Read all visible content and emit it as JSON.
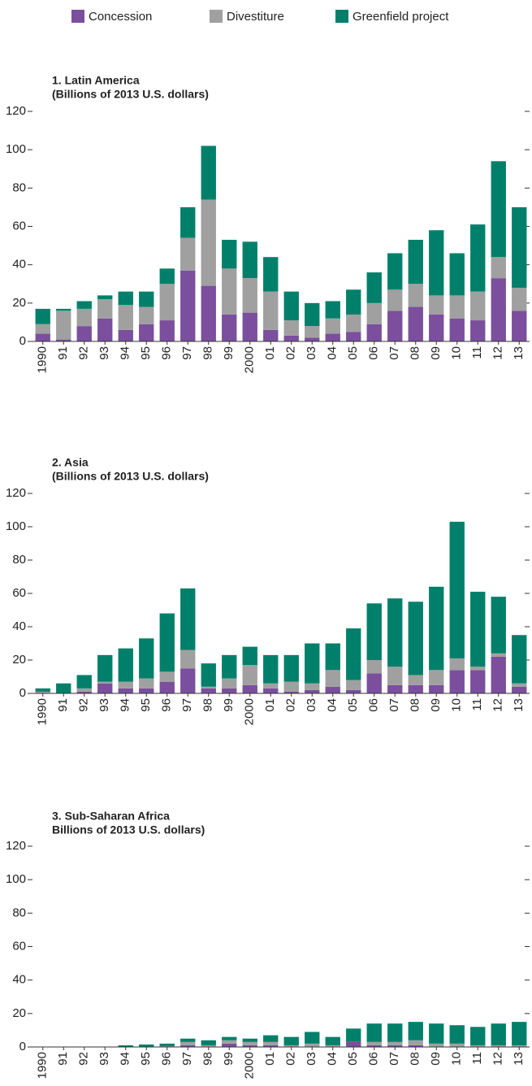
{
  "chart_data": [
    {
      "type": "bar",
      "stacked": true,
      "title": "1. Latin America",
      "subtitle": "(Billions of 2013 U.S. dollars)",
      "categories": [
        "1990",
        "91",
        "92",
        "93",
        "94",
        "95",
        "96",
        "97",
        "98",
        "99",
        "2000",
        "01",
        "02",
        "03",
        "04",
        "05",
        "06",
        "07",
        "08",
        "09",
        "10",
        "11",
        "12",
        "13"
      ],
      "series": [
        {
          "name": "Concession",
          "color": "#7b4f9d",
          "values": [
            4,
            1,
            8,
            12,
            6,
            9,
            11,
            37,
            29,
            14,
            15,
            6,
            3,
            2,
            4,
            5,
            9,
            16,
            18,
            14,
            12,
            11,
            33,
            16
          ]
        },
        {
          "name": "Divestiture",
          "color": "#a0a0a0",
          "values": [
            5,
            15,
            9,
            10,
            13,
            9,
            19,
            17,
            45,
            24,
            18,
            20,
            8,
            6,
            8,
            9,
            11,
            11,
            12,
            10,
            12,
            15,
            11,
            12
          ]
        },
        {
          "name": "Greenfield project",
          "color": "#00806a",
          "values": [
            8,
            1,
            4,
            2,
            7,
            8,
            8,
            16,
            28,
            15,
            19,
            18,
            15,
            12,
            9,
            13,
            16,
            19,
            23,
            34,
            22,
            35,
            50,
            42
          ]
        }
      ],
      "ylim": [
        0,
        120
      ],
      "yticks": [
        0,
        20,
        40,
        60,
        80,
        100,
        120
      ]
    },
    {
      "type": "bar",
      "stacked": true,
      "title": "2. Asia",
      "subtitle": "(Billions of 2013 U.S. dollars)",
      "categories": [
        "1990",
        "91",
        "92",
        "93",
        "94",
        "95",
        "96",
        "97",
        "98",
        "99",
        "2000",
        "01",
        "02",
        "03",
        "04",
        "05",
        "06",
        "07",
        "08",
        "09",
        "10",
        "11",
        "12",
        "13"
      ],
      "series": [
        {
          "name": "Concession",
          "color": "#7b4f9d",
          "values": [
            0,
            0,
            1,
            6,
            3,
            3,
            7,
            15,
            3,
            3,
            5,
            3,
            1,
            2,
            4,
            2,
            12,
            5,
            5,
            5,
            14,
            14,
            22,
            4
          ]
        },
        {
          "name": "Divestiture",
          "color": "#a0a0a0",
          "values": [
            1,
            0,
            2,
            1,
            4,
            6,
            6,
            11,
            1,
            6,
            12,
            3,
            6,
            4,
            10,
            6,
            8,
            11,
            6,
            9,
            7,
            2,
            2,
            2
          ]
        },
        {
          "name": "Greenfield project",
          "color": "#00806a",
          "values": [
            2,
            6,
            8,
            16,
            20,
            24,
            35,
            37,
            14,
            14,
            11,
            17,
            16,
            24,
            16,
            31,
            34,
            41,
            44,
            50,
            82,
            45,
            34,
            29
          ]
        }
      ],
      "ylim": [
        0,
        120
      ],
      "yticks": [
        0,
        20,
        40,
        60,
        80,
        100,
        120
      ]
    },
    {
      "type": "bar",
      "stacked": true,
      "title": "3. Sub-Saharan Africa",
      "subtitle": "Billions of 2013 U.S. dollars)",
      "categories": [
        "1990",
        "91",
        "92",
        "93",
        "94",
        "95",
        "96",
        "97",
        "98",
        "99",
        "2000",
        "01",
        "02",
        "03",
        "04",
        "05",
        "06",
        "07",
        "08",
        "09",
        "10",
        "11",
        "12",
        "13"
      ],
      "series": [
        {
          "name": "Concession",
          "color": "#7b4f9d",
          "values": [
            0,
            0,
            0,
            0,
            0,
            0,
            0,
            1,
            0,
            2,
            1,
            1,
            0,
            0,
            0,
            3,
            1,
            1,
            1,
            0,
            0,
            0,
            0,
            0
          ]
        },
        {
          "name": "Divestiture",
          "color": "#a0a0a0",
          "values": [
            0,
            0,
            0,
            0,
            0,
            0,
            0.5,
            2,
            1,
            2,
            2,
            2,
            1,
            2,
            1,
            0,
            2,
            2,
            3,
            2,
            2,
            1,
            1,
            1
          ]
        },
        {
          "name": "Greenfield project",
          "color": "#00806a",
          "values": [
            0,
            0,
            0,
            0,
            1,
            1.5,
            1.5,
            2,
            3,
            2,
            2,
            4,
            5,
            7,
            5,
            8,
            11,
            11,
            11,
            12,
            11,
            11,
            13,
            14
          ]
        }
      ],
      "ylim": [
        0,
        120
      ],
      "yticks": [
        0,
        20,
        40,
        60,
        80,
        100,
        120
      ]
    }
  ]
}
